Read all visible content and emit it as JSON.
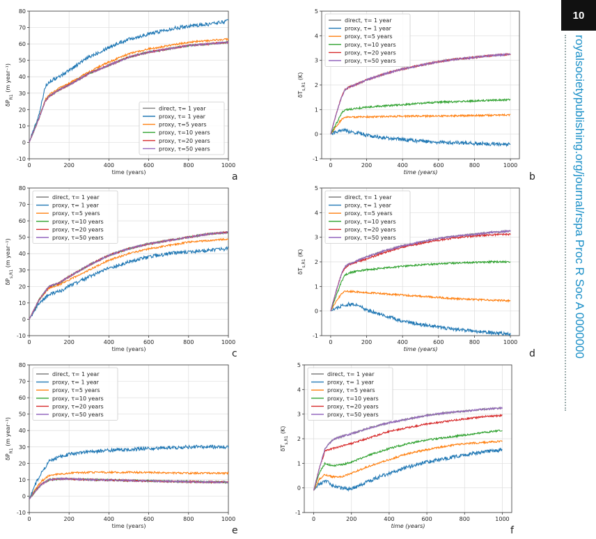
{
  "header": {
    "page_number": "10",
    "side_text": "royalsocietypublishing.org/journal/rspa Proc R Soc A 0000000"
  },
  "colors": {
    "direct": "#7f7f7f",
    "tau1": "#1f77b4",
    "tau5": "#ff7f0e",
    "tau10": "#2ca02c",
    "tau20": "#d62728",
    "tau50": "#9467bd"
  },
  "chart_data": [
    {
      "panel": "a",
      "type": "line",
      "xlabel": "time (years)",
      "ylabel": "δP_{R_1} (m year⁻¹)",
      "xlim": [
        0,
        1000
      ],
      "ylim": [
        -10,
        80
      ],
      "xticks": [
        0,
        200,
        400,
        600,
        800,
        1000
      ],
      "yticks": [
        -10,
        0,
        10,
        20,
        30,
        40,
        50,
        60,
        70,
        80
      ],
      "grid": true,
      "legend_position": "lower-right",
      "x": [
        0,
        50,
        80,
        100,
        150,
        200,
        300,
        400,
        500,
        600,
        700,
        800,
        900,
        1000
      ],
      "series": [
        {
          "name": "direct, τ= 1 year",
          "key": "direct",
          "values": [
            0,
            15,
            25,
            28,
            32,
            35,
            42,
            47,
            52,
            55,
            57,
            59,
            60,
            61
          ]
        },
        {
          "name": "proxy, τ= 1 year",
          "key": "tau1",
          "values": [
            0,
            17,
            34,
            37,
            40,
            44,
            52,
            58,
            63,
            66,
            69,
            71,
            72,
            74
          ]
        },
        {
          "name": "proxy, τ=5 years",
          "key": "tau5",
          "values": [
            0,
            15,
            26,
            29,
            33,
            36,
            43,
            49,
            54,
            57,
            59,
            61,
            62,
            63
          ]
        },
        {
          "name": "proxy, τ=10 years",
          "key": "tau10",
          "values": [
            0,
            15,
            25,
            28,
            32,
            35,
            42,
            47,
            52,
            55,
            57,
            59,
            60,
            61
          ]
        },
        {
          "name": "proxy, τ=20 years",
          "key": "tau20",
          "values": [
            0,
            15,
            25,
            28,
            32,
            35,
            42,
            47,
            52,
            55,
            57,
            59,
            60,
            61
          ]
        },
        {
          "name": "proxy, τ=50 years",
          "key": "tau50",
          "values": [
            0,
            15,
            25,
            28,
            32,
            35,
            42,
            47,
            52,
            55,
            57,
            59,
            60,
            61
          ]
        }
      ]
    },
    {
      "panel": "b",
      "type": "line",
      "xlabel": "time (years)",
      "ylabel": "δT_{s,R_1} (K)",
      "xlim": [
        -50,
        1050
      ],
      "ylim": [
        -1,
        5
      ],
      "xticks": [
        0,
        200,
        400,
        600,
        800,
        1000
      ],
      "yticks": [
        -1,
        0,
        1,
        2,
        3,
        4,
        5
      ],
      "grid": true,
      "legend_position": "top-left",
      "x": [
        0,
        30,
        60,
        80,
        100,
        150,
        200,
        300,
        400,
        500,
        600,
        700,
        800,
        900,
        1000
      ],
      "series": [
        {
          "name": "direct, τ= 1 year",
          "key": "direct",
          "values": [
            0,
            0.8,
            1.5,
            1.8,
            1.9,
            2.05,
            2.2,
            2.45,
            2.65,
            2.8,
            2.95,
            3.05,
            3.12,
            3.2,
            3.25
          ]
        },
        {
          "name": "proxy, τ= 1 year",
          "key": "tau1",
          "values": [
            0,
            0.08,
            0.15,
            0.15,
            0.12,
            0.05,
            -0.05,
            -0.15,
            -0.22,
            -0.28,
            -0.32,
            -0.35,
            -0.38,
            -0.4,
            -0.42
          ]
        },
        {
          "name": "proxy, τ=5 years",
          "key": "tau5",
          "values": [
            0,
            0.3,
            0.6,
            0.7,
            0.7,
            0.7,
            0.7,
            0.72,
            0.73,
            0.73,
            0.74,
            0.75,
            0.76,
            0.77,
            0.78
          ]
        },
        {
          "name": "proxy, τ=10 years",
          "key": "tau10",
          "values": [
            0,
            0.4,
            0.85,
            1.0,
            1.0,
            1.05,
            1.1,
            1.15,
            1.2,
            1.25,
            1.3,
            1.32,
            1.35,
            1.38,
            1.4
          ]
        },
        {
          "name": "proxy, τ=20 years",
          "key": "tau20",
          "values": [
            0,
            0.8,
            1.5,
            1.8,
            1.9,
            2.05,
            2.2,
            2.45,
            2.65,
            2.8,
            2.95,
            3.05,
            3.12,
            3.2,
            3.25
          ]
        },
        {
          "name": "proxy, τ=50 years",
          "key": "tau50",
          "values": [
            0,
            0.8,
            1.5,
            1.8,
            1.9,
            2.05,
            2.2,
            2.45,
            2.65,
            2.8,
            2.95,
            3.05,
            3.12,
            3.2,
            3.25
          ]
        }
      ]
    },
    {
      "panel": "c",
      "type": "line",
      "xlabel": "time (years)",
      "ylabel": "δP_{s,R_1} (m year⁻¹)",
      "xlim": [
        0,
        1000
      ],
      "ylim": [
        -10,
        80
      ],
      "xticks": [
        0,
        200,
        400,
        600,
        800,
        1000
      ],
      "yticks": [
        -10,
        0,
        10,
        20,
        30,
        40,
        50,
        60,
        70,
        80
      ],
      "grid": true,
      "legend_position": "top-left",
      "x": [
        0,
        50,
        100,
        150,
        200,
        300,
        400,
        500,
        600,
        700,
        800,
        900,
        1000
      ],
      "series": [
        {
          "name": "direct, τ= 1 year",
          "key": "direct",
          "values": [
            0,
            12,
            20,
            22,
            26,
            33,
            39,
            43,
            46,
            48,
            50,
            52,
            53
          ]
        },
        {
          "name": "proxy, τ= 1 year",
          "key": "tau1",
          "values": [
            0,
            10,
            15,
            17,
            20,
            26,
            31,
            35,
            38,
            40,
            41,
            42,
            43
          ]
        },
        {
          "name": "proxy, τ=5 years",
          "key": "tau5",
          "values": [
            0,
            12,
            19,
            21,
            24,
            30,
            36,
            40,
            43,
            45,
            47,
            48,
            49
          ]
        },
        {
          "name": "proxy, τ=10 years",
          "key": "tau10",
          "values": [
            0,
            12,
            20,
            22,
            26,
            33,
            39,
            43,
            46,
            48,
            50,
            52,
            53
          ]
        },
        {
          "name": "proxy, τ=20 years",
          "key": "tau20",
          "values": [
            0,
            12,
            20,
            22,
            26,
            33,
            39,
            43,
            46,
            48,
            50,
            52,
            53
          ]
        },
        {
          "name": "proxy, τ=50 years",
          "key": "tau50",
          "values": [
            0,
            12,
            20,
            22,
            26,
            33,
            39,
            43,
            46,
            48,
            50,
            52,
            53
          ]
        }
      ]
    },
    {
      "panel": "d",
      "type": "line",
      "xlabel": "time (years)",
      "ylabel": "δT_{s,R_1} (K)",
      "xlim": [
        -50,
        1050
      ],
      "ylim": [
        -1,
        5
      ],
      "xticks": [
        0,
        200,
        400,
        600,
        800,
        1000
      ],
      "yticks": [
        -1,
        0,
        1,
        2,
        3,
        4,
        5
      ],
      "grid": true,
      "legend_position": "top-left",
      "x": [
        0,
        30,
        60,
        80,
        100,
        150,
        200,
        300,
        400,
        500,
        600,
        700,
        800,
        900,
        1000
      ],
      "series": [
        {
          "name": "direct, τ= 1 year",
          "key": "direct",
          "values": [
            0,
            0.8,
            1.5,
            1.8,
            1.9,
            2.05,
            2.2,
            2.45,
            2.65,
            2.8,
            2.95,
            3.05,
            3.12,
            3.2,
            3.25
          ]
        },
        {
          "name": "proxy, τ= 1 year",
          "key": "tau1",
          "values": [
            0,
            0.1,
            0.2,
            0.25,
            0.28,
            0.22,
            0.05,
            -0.2,
            -0.4,
            -0.55,
            -0.65,
            -0.75,
            -0.82,
            -0.88,
            -0.93
          ]
        },
        {
          "name": "proxy, τ=5 years",
          "key": "tau5",
          "values": [
            0,
            0.4,
            0.7,
            0.8,
            0.8,
            0.78,
            0.75,
            0.7,
            0.65,
            0.6,
            0.55,
            0.5,
            0.47,
            0.44,
            0.42
          ]
        },
        {
          "name": "proxy, τ=10 years",
          "key": "tau10",
          "values": [
            0,
            0.6,
            1.2,
            1.45,
            1.55,
            1.62,
            1.68,
            1.75,
            1.82,
            1.88,
            1.92,
            1.95,
            1.98,
            2.0,
            2.0
          ]
        },
        {
          "name": "proxy, τ=20 years",
          "key": "tau20",
          "values": [
            0,
            0.8,
            1.5,
            1.75,
            1.88,
            2.0,
            2.12,
            2.38,
            2.6,
            2.75,
            2.88,
            2.98,
            3.05,
            3.1,
            3.12
          ]
        },
        {
          "name": "proxy, τ=50 years",
          "key": "tau50",
          "values": [
            0,
            0.8,
            1.5,
            1.8,
            1.9,
            2.05,
            2.2,
            2.45,
            2.65,
            2.8,
            2.95,
            3.05,
            3.12,
            3.2,
            3.25
          ]
        }
      ]
    },
    {
      "panel": "e",
      "type": "line",
      "xlabel": "time (years)",
      "ylabel": "δP_{R_1} (m year⁻¹)",
      "xlim": [
        0,
        1000
      ],
      "ylim": [
        -10,
        80
      ],
      "xticks": [
        0,
        200,
        400,
        600,
        800,
        1000
      ],
      "yticks": [
        -10,
        0,
        10,
        20,
        30,
        40,
        50,
        60,
        70,
        80
      ],
      "grid": true,
      "legend_position": "top-left",
      "x": [
        0,
        30,
        60,
        100,
        150,
        200,
        300,
        400,
        500,
        600,
        700,
        800,
        900,
        1000
      ],
      "series": [
        {
          "name": "direct, τ= 1 year",
          "key": "direct",
          "values": [
            -2,
            3,
            7,
            10,
            10.5,
            10.5,
            10,
            9.8,
            9.5,
            9.3,
            9,
            8.8,
            8.6,
            8.5
          ]
        },
        {
          "name": "proxy, τ= 1 year",
          "key": "tau1",
          "values": [
            -2,
            7,
            14,
            21,
            24,
            25.5,
            27,
            28,
            28.5,
            29,
            29.5,
            30,
            30,
            30
          ]
        },
        {
          "name": "proxy, τ=5 years",
          "key": "tau5",
          "values": [
            -2,
            4,
            9,
            12.5,
            13.5,
            14,
            14.5,
            14.5,
            14.5,
            14.5,
            14.2,
            14,
            14,
            14
          ]
        },
        {
          "name": "proxy, τ=10 years",
          "key": "tau10",
          "values": [
            -2,
            3,
            7,
            10,
            10.5,
            10.5,
            10,
            9.8,
            9.5,
            9.3,
            9,
            8.8,
            8.6,
            8.5
          ]
        },
        {
          "name": "proxy, τ=20 years",
          "key": "tau20",
          "values": [
            -2,
            3,
            7,
            10,
            10.5,
            10.5,
            10,
            9.8,
            9.5,
            9.3,
            9,
            8.8,
            8.6,
            8.5
          ]
        },
        {
          "name": "proxy, τ=50 years",
          "key": "tau50",
          "values": [
            -2,
            3,
            7,
            10,
            10.5,
            10.5,
            10,
            9.8,
            9.5,
            9.3,
            9,
            8.8,
            8.6,
            8.5
          ]
        }
      ]
    },
    {
      "panel": "f",
      "type": "line",
      "xlabel": "time (years)",
      "ylabel": "δT_{s,R_1} (K)",
      "xlim": [
        -50,
        1050
      ],
      "ylim": [
        -1,
        5
      ],
      "xticks": [
        0,
        200,
        400,
        600,
        800,
        1000
      ],
      "yticks": [
        -1,
        0,
        1,
        2,
        3,
        4,
        5
      ],
      "grid": true,
      "legend_position": "top-left",
      "x": [
        0,
        30,
        60,
        100,
        150,
        200,
        300,
        400,
        500,
        600,
        700,
        800,
        900,
        1000
      ],
      "series": [
        {
          "name": "direct, τ= 1 year",
          "key": "direct",
          "values": [
            -0.1,
            0.8,
            1.6,
            1.95,
            2.1,
            2.2,
            2.45,
            2.65,
            2.8,
            2.95,
            3.05,
            3.12,
            3.2,
            3.25
          ]
        },
        {
          "name": "proxy, τ= 1 year",
          "key": "tau1",
          "values": [
            -0.1,
            0.15,
            0.3,
            0.1,
            0.0,
            -0.05,
            0.3,
            0.6,
            0.85,
            1.05,
            1.2,
            1.35,
            1.45,
            1.55
          ]
        },
        {
          "name": "proxy, τ=5 years",
          "key": "tau5",
          "values": [
            -0.1,
            0.35,
            0.55,
            0.45,
            0.45,
            0.6,
            0.9,
            1.15,
            1.4,
            1.55,
            1.7,
            1.8,
            1.85,
            1.9
          ]
        },
        {
          "name": "proxy, τ=10 years",
          "key": "tau10",
          "values": [
            -0.1,
            0.6,
            1.0,
            0.9,
            0.95,
            1.05,
            1.35,
            1.6,
            1.8,
            1.95,
            2.05,
            2.15,
            2.25,
            2.35
          ]
        },
        {
          "name": "proxy, τ=20 years",
          "key": "tau20",
          "values": [
            -0.1,
            0.8,
            1.5,
            1.6,
            1.7,
            1.8,
            2.05,
            2.3,
            2.45,
            2.6,
            2.7,
            2.8,
            2.9,
            2.95
          ]
        },
        {
          "name": "proxy, τ=50 years",
          "key": "tau50",
          "values": [
            -0.1,
            0.8,
            1.6,
            1.95,
            2.1,
            2.2,
            2.45,
            2.65,
            2.8,
            2.95,
            3.05,
            3.12,
            3.2,
            3.25
          ]
        }
      ]
    }
  ]
}
